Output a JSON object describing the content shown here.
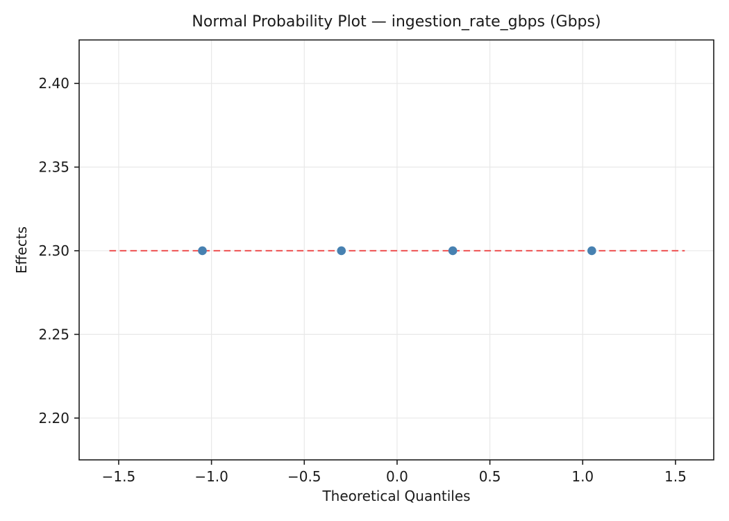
{
  "chart_data": {
    "type": "scatter",
    "title": "Normal Probability Plot — ingestion_rate_gbps (Gbps)",
    "xlabel": "Theoretical Quantiles",
    "ylabel": "Effects",
    "points": [
      {
        "x": -1.049,
        "y": 2.3
      },
      {
        "x": -0.3,
        "y": 2.3
      },
      {
        "x": 0.3,
        "y": 2.3
      },
      {
        "x": 1.049,
        "y": 2.3
      }
    ],
    "reference_line": {
      "y": 2.3,
      "x_start": -1.55,
      "x_end": 1.55,
      "style": "dashed",
      "color": "#ef5a5a"
    },
    "marker": {
      "shape": "circle",
      "color": "#4781b1",
      "radius_px": 6.3
    },
    "xticks": [
      {
        "value": -1.5,
        "label": "−1.5"
      },
      {
        "value": -1.0,
        "label": "−1.0"
      },
      {
        "value": -0.5,
        "label": "−0.5"
      },
      {
        "value": 0.0,
        "label": "0.0"
      },
      {
        "value": 0.5,
        "label": "0.5"
      },
      {
        "value": 1.0,
        "label": "1.0"
      },
      {
        "value": 1.5,
        "label": "1.5"
      }
    ],
    "yticks": [
      {
        "value": 2.2,
        "label": "2.20"
      },
      {
        "value": 2.25,
        "label": "2.25"
      },
      {
        "value": 2.3,
        "label": "2.30"
      },
      {
        "value": 2.35,
        "label": "2.35"
      },
      {
        "value": 2.4,
        "label": "2.40"
      }
    ],
    "xlim": [
      -1.713,
      1.706
    ],
    "ylim": [
      2.175,
      2.426
    ],
    "grid": true,
    "grid_color": "#e8e8e8",
    "spine_color": "#1c1c1c",
    "background_color": "#ffffff",
    "legend": "none"
  }
}
